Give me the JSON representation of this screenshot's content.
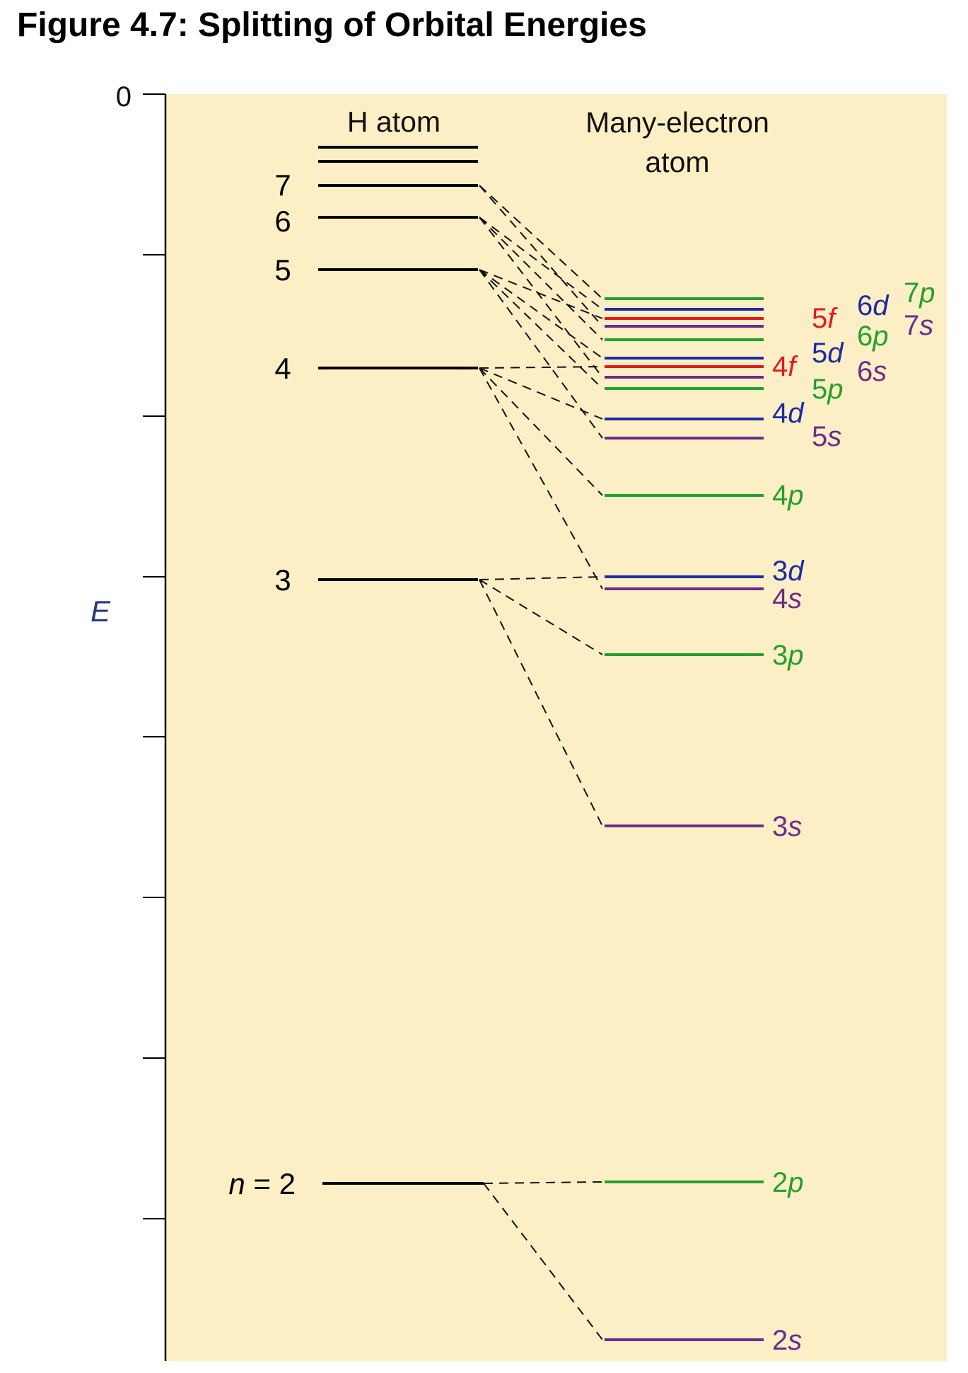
{
  "title": "Figure 4.7: Splitting of Orbital Energies",
  "axis": {
    "zero_label": "0",
    "energy_label": "E"
  },
  "headers": {
    "h_atom": "H atom",
    "many_line1": "Many-electron",
    "many_line2": "atom"
  },
  "colors": {
    "background": "#fdefc5",
    "s": "#6a2c8e",
    "p": "#24a02c",
    "d": "#1f2aa6",
    "f": "#e21b1b",
    "h_levels": "#000000"
  },
  "h_levels": [
    {
      "n": 2,
      "label_var": "n",
      "label_rest": " = 2"
    },
    {
      "n": 3,
      "label": "3"
    },
    {
      "n": 4,
      "label": "4"
    },
    {
      "n": 5,
      "label": "5"
    },
    {
      "n": 6,
      "label": "6"
    },
    {
      "n": 7,
      "label": "7"
    },
    {
      "n": 8
    },
    {
      "n": 9
    }
  ],
  "orbitals": [
    {
      "name": "2s",
      "num": "2",
      "letter": "s",
      "type": "s",
      "n": 2
    },
    {
      "name": "2p",
      "num": "2",
      "letter": "p",
      "type": "p",
      "n": 2
    },
    {
      "name": "3s",
      "num": "3",
      "letter": "s",
      "type": "s",
      "n": 3
    },
    {
      "name": "3p",
      "num": "3",
      "letter": "p",
      "type": "p",
      "n": 3
    },
    {
      "name": "4s",
      "num": "4",
      "letter": "s",
      "type": "s",
      "n": 4
    },
    {
      "name": "3d",
      "num": "3",
      "letter": "d",
      "type": "d",
      "n": 3
    },
    {
      "name": "4p",
      "num": "4",
      "letter": "p",
      "type": "p",
      "n": 4
    },
    {
      "name": "5s",
      "num": "5",
      "letter": "s",
      "type": "s",
      "n": 5
    },
    {
      "name": "4d",
      "num": "4",
      "letter": "d",
      "type": "d",
      "n": 4
    },
    {
      "name": "5p",
      "num": "5",
      "letter": "p",
      "type": "p",
      "n": 5
    },
    {
      "name": "6s",
      "num": "6",
      "letter": "s",
      "type": "s",
      "n": 6
    },
    {
      "name": "4f",
      "num": "4",
      "letter": "f",
      "type": "f",
      "n": 4
    },
    {
      "name": "5d",
      "num": "5",
      "letter": "d",
      "type": "d",
      "n": 5
    },
    {
      "name": "6p",
      "num": "6",
      "letter": "p",
      "type": "p",
      "n": 6
    },
    {
      "name": "7s",
      "num": "7",
      "letter": "s",
      "type": "s",
      "n": 7
    },
    {
      "name": "5f",
      "num": "5",
      "letter": "f",
      "type": "f",
      "n": 5
    },
    {
      "name": "6d",
      "num": "6",
      "letter": "d",
      "type": "d",
      "n": 6
    },
    {
      "name": "7p",
      "num": "7",
      "letter": "p",
      "type": "p",
      "n": 7
    }
  ]
}
